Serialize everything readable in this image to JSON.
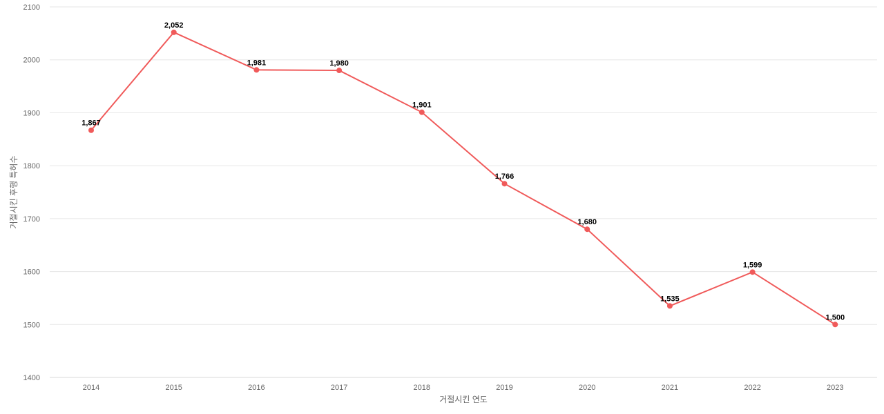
{
  "chart_data": {
    "type": "line",
    "title": "",
    "xlabel": "거절시킨 연도",
    "ylabel": "거절시킨 후행 특허수",
    "categories": [
      "2014",
      "2015",
      "2016",
      "2017",
      "2018",
      "2019",
      "2020",
      "2021",
      "2022",
      "2023"
    ],
    "series": [
      {
        "values": [
          1867,
          2052,
          1981,
          1980,
          1901,
          1766,
          1680,
          1535,
          1599,
          1500
        ],
        "labels": [
          "1,867",
          "2,052",
          "1,981",
          "1,980",
          "1,901",
          "1,766",
          "1,680",
          "1,535",
          "1,599",
          "1,500"
        ],
        "color": "#f05a5a"
      }
    ],
    "ylim": [
      1400,
      2100
    ],
    "yticks": [
      "1400",
      "1500",
      "1600",
      "1700",
      "1800",
      "1900",
      "2000",
      "2100"
    ],
    "grid": true,
    "legend": "none"
  }
}
